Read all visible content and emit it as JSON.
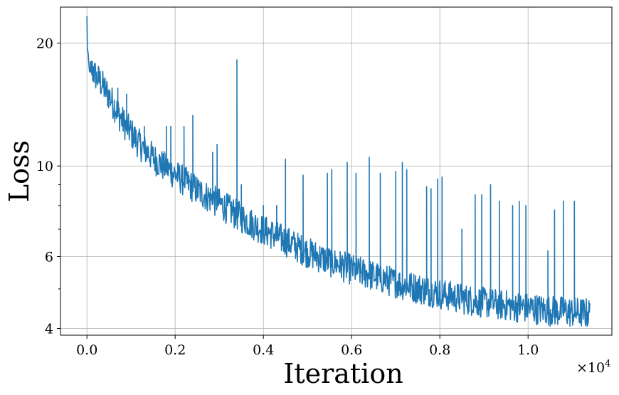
{
  "chart_data": {
    "type": "line",
    "title": "",
    "xlabel": "Iteration",
    "ylabel": "Loss",
    "x_offset_text": "×10",
    "x_offset_exponent": "4",
    "x_multiplier": 10000,
    "xlim": [
      -0.06,
      1.19
    ],
    "ylim": [
      3.85,
      24.5
    ],
    "y_scale": "log",
    "grid": true,
    "x_ticks": [
      {
        "value": 0.0,
        "label": "0.0"
      },
      {
        "value": 0.2,
        "label": "0.2"
      },
      {
        "value": 0.4,
        "label": "0.4"
      },
      {
        "value": 0.6,
        "label": "0.6"
      },
      {
        "value": 0.8,
        "label": "0.8"
      },
      {
        "value": 1.0,
        "label": "1.0"
      }
    ],
    "y_ticks": [
      {
        "value": 4,
        "label": "4"
      },
      {
        "value": 6,
        "label": "6"
      },
      {
        "value": 10,
        "label": "10"
      },
      {
        "value": 20,
        "label": "20"
      }
    ],
    "y_minor_ticks": [
      5,
      7,
      8,
      9
    ],
    "series": [
      {
        "color": "#1f77b4",
        "x_end": 11400,
        "trend_points": [
          [
            0,
            23.0
          ],
          [
            10,
            19.5
          ],
          [
            50,
            17.2
          ],
          [
            150,
            16.5
          ],
          [
            300,
            15.7
          ],
          [
            500,
            14.5
          ],
          [
            800,
            12.6
          ],
          [
            1200,
            11.0
          ],
          [
            1600,
            10.0
          ],
          [
            2000,
            9.3
          ],
          [
            2500,
            8.5
          ],
          [
            3000,
            7.9
          ],
          [
            3500,
            7.3
          ],
          [
            4000,
            6.8
          ],
          [
            4500,
            6.4
          ],
          [
            5000,
            6.0
          ],
          [
            5500,
            5.7
          ],
          [
            6000,
            5.45
          ],
          [
            6500,
            5.25
          ],
          [
            7000,
            5.05
          ],
          [
            7500,
            4.9
          ],
          [
            8000,
            4.75
          ],
          [
            8500,
            4.62
          ],
          [
            9000,
            4.52
          ],
          [
            9500,
            4.45
          ],
          [
            10000,
            4.38
          ],
          [
            10500,
            4.32
          ],
          [
            11000,
            4.28
          ],
          [
            11400,
            4.25
          ]
        ],
        "spikes": [
          [
            80,
            18.0
          ],
          [
            150,
            17.5
          ],
          [
            220,
            17.0
          ],
          [
            420,
            15.5
          ],
          [
            700,
            15.5
          ],
          [
            900,
            15.0
          ],
          [
            1300,
            12.5
          ],
          [
            1800,
            12.5
          ],
          [
            1900,
            12.5
          ],
          [
            2200,
            12.5
          ],
          [
            2400,
            13.3
          ],
          [
            2850,
            10.8
          ],
          [
            2950,
            11.3
          ],
          [
            3400,
            18.2
          ],
          [
            3500,
            9.0
          ],
          [
            4000,
            8.0
          ],
          [
            4300,
            8.0
          ],
          [
            4500,
            10.4
          ],
          [
            4900,
            9.5
          ],
          [
            5450,
            9.6
          ],
          [
            5550,
            9.8
          ],
          [
            5900,
            10.2
          ],
          [
            6100,
            9.6
          ],
          [
            6400,
            10.5
          ],
          [
            6650,
            9.6
          ],
          [
            7000,
            9.7
          ],
          [
            7150,
            10.2
          ],
          [
            7250,
            9.8
          ],
          [
            7700,
            8.9
          ],
          [
            7800,
            8.8
          ],
          [
            7950,
            9.3
          ],
          [
            8050,
            9.4
          ],
          [
            8500,
            7.0
          ],
          [
            8800,
            8.5
          ],
          [
            8950,
            8.5
          ],
          [
            9150,
            9.0
          ],
          [
            9350,
            8.2
          ],
          [
            9650,
            8.0
          ],
          [
            9800,
            8.2
          ],
          [
            9950,
            8.0
          ],
          [
            10450,
            6.2
          ],
          [
            10600,
            7.8
          ],
          [
            10800,
            8.2
          ],
          [
            11050,
            8.2
          ]
        ]
      }
    ]
  }
}
